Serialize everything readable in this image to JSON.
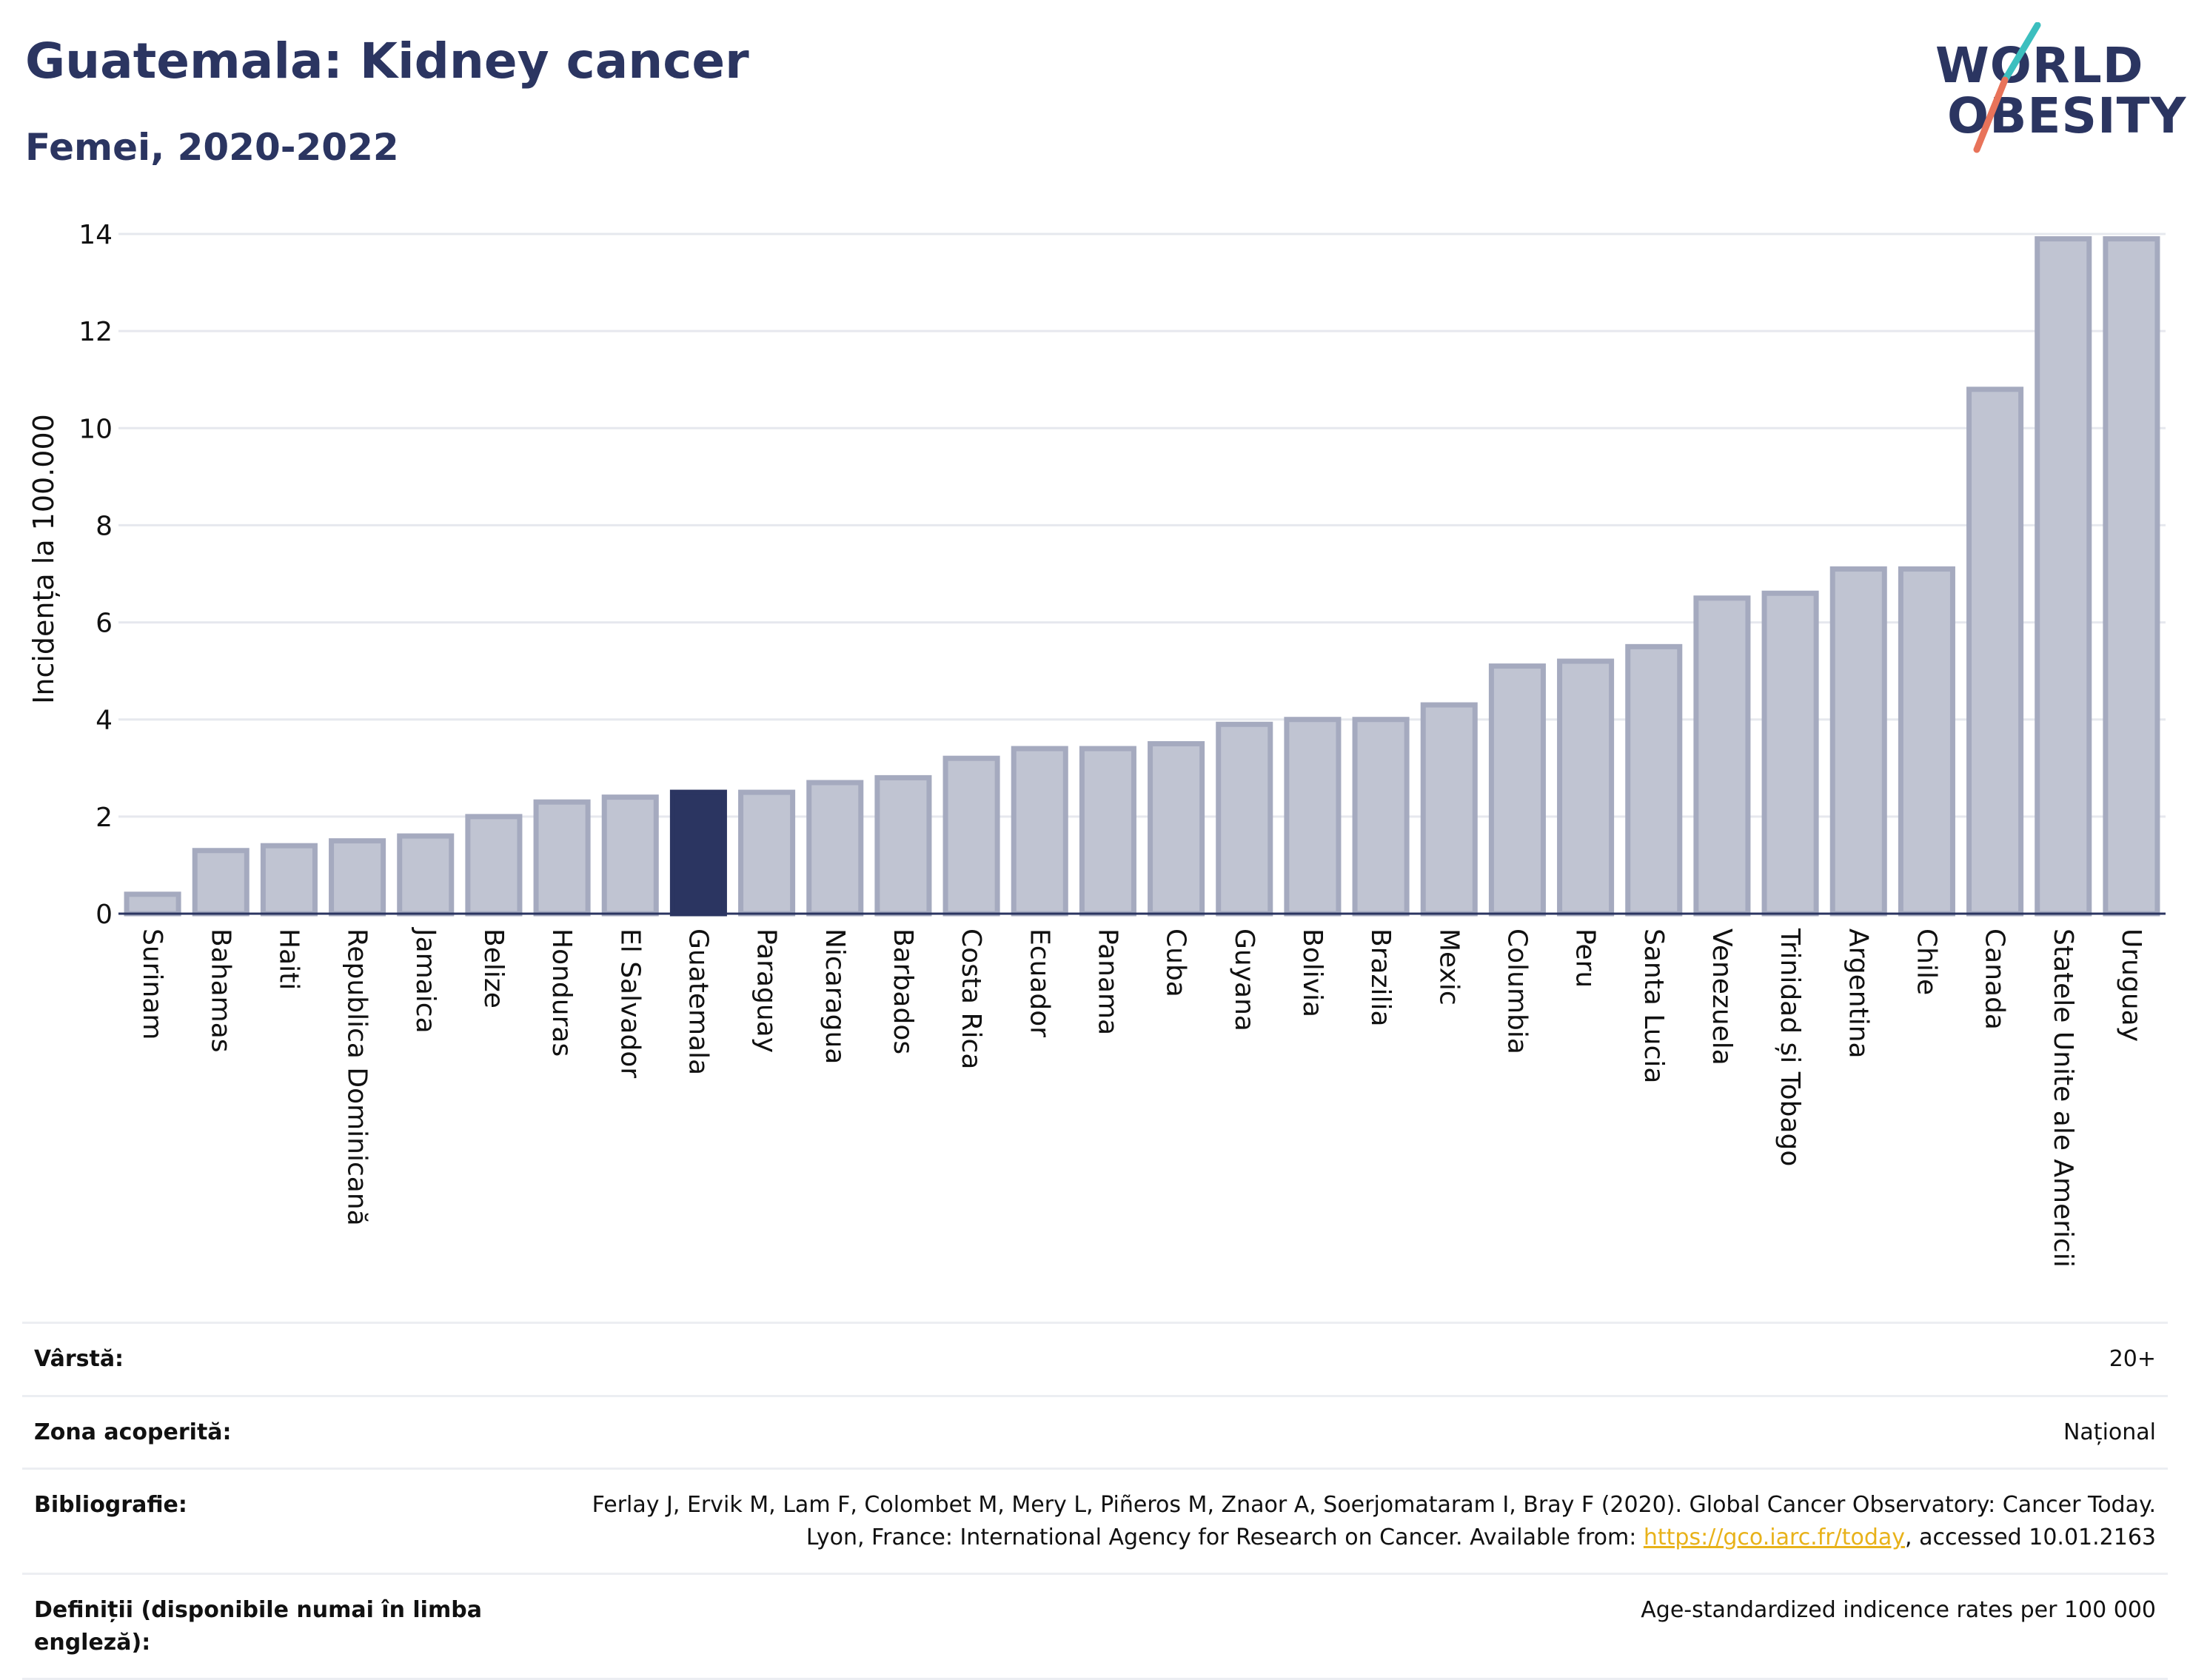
{
  "header": {
    "title": "Guatemala: Kidney cancer",
    "subtitle": "Femei, 2020-2022"
  },
  "logo": {
    "line1": "WORLD",
    "line2": "OBESITY",
    "accent_colors": [
      "#3cbfbf",
      "#e8735a"
    ]
  },
  "chart_data": {
    "type": "bar",
    "ylabel": "Incidența la 100.000",
    "ylim": [
      0,
      14
    ],
    "yticks": [
      0,
      2,
      4,
      6,
      8,
      10,
      12,
      14
    ],
    "grid": true,
    "categories": [
      "Surinam",
      "Bahamas",
      "Haiti",
      "Republica Dominicană",
      "Jamaica",
      "Belize",
      "Honduras",
      "El Salvador",
      "Guatemala",
      "Paraguay",
      "Nicaragua",
      "Barbados",
      "Costa Rica",
      "Ecuador",
      "Panama",
      "Cuba",
      "Guyana",
      "Bolivia",
      "Brazilia",
      "Mexic",
      "Columbia",
      "Peru",
      "Santa Lucia",
      "Venezuela",
      "Trinidad și Tobago",
      "Argentina",
      "Chile",
      "Canada",
      "Statele Unite ale Americii",
      "Uruguay"
    ],
    "values": [
      0.4,
      1.3,
      1.4,
      1.5,
      1.6,
      2.0,
      2.3,
      2.4,
      2.5,
      2.5,
      2.7,
      2.8,
      3.2,
      3.4,
      3.4,
      3.5,
      3.9,
      4.0,
      4.0,
      4.3,
      5.1,
      5.2,
      5.5,
      6.5,
      6.6,
      7.1,
      7.1,
      10.8,
      13.9,
      13.9
    ],
    "highlight": "Guatemala",
    "colors": {
      "bar": "#c0c4d2",
      "bar_border": "#a5aabf",
      "highlight": "#2b3561",
      "grid": "#e6e8ee",
      "axis": "#2b3561"
    }
  },
  "meta": {
    "age_label": "Vârstă:",
    "age_value": "20+",
    "area_label": "Zona acoperită:",
    "area_value": "Național",
    "bib_label": "Bibliografie:",
    "bib_text_1": "Ferlay J, Ervik M, Lam F, Colombet M, Mery L, Piñeros M, Znaor A, Soerjomataram I, Bray F (2020). Global Cancer Observatory: Cancer Today. Lyon, France: International Agency for Research on Cancer. Available from: ",
    "bib_link": "https://gco.iarc.fr/today",
    "bib_text_2": ", accessed 10.01.2163",
    "def_label": "Definiții (disponibile numai în limba engleză):",
    "def_value": "Age-standardized indicence rates per 100 000"
  }
}
